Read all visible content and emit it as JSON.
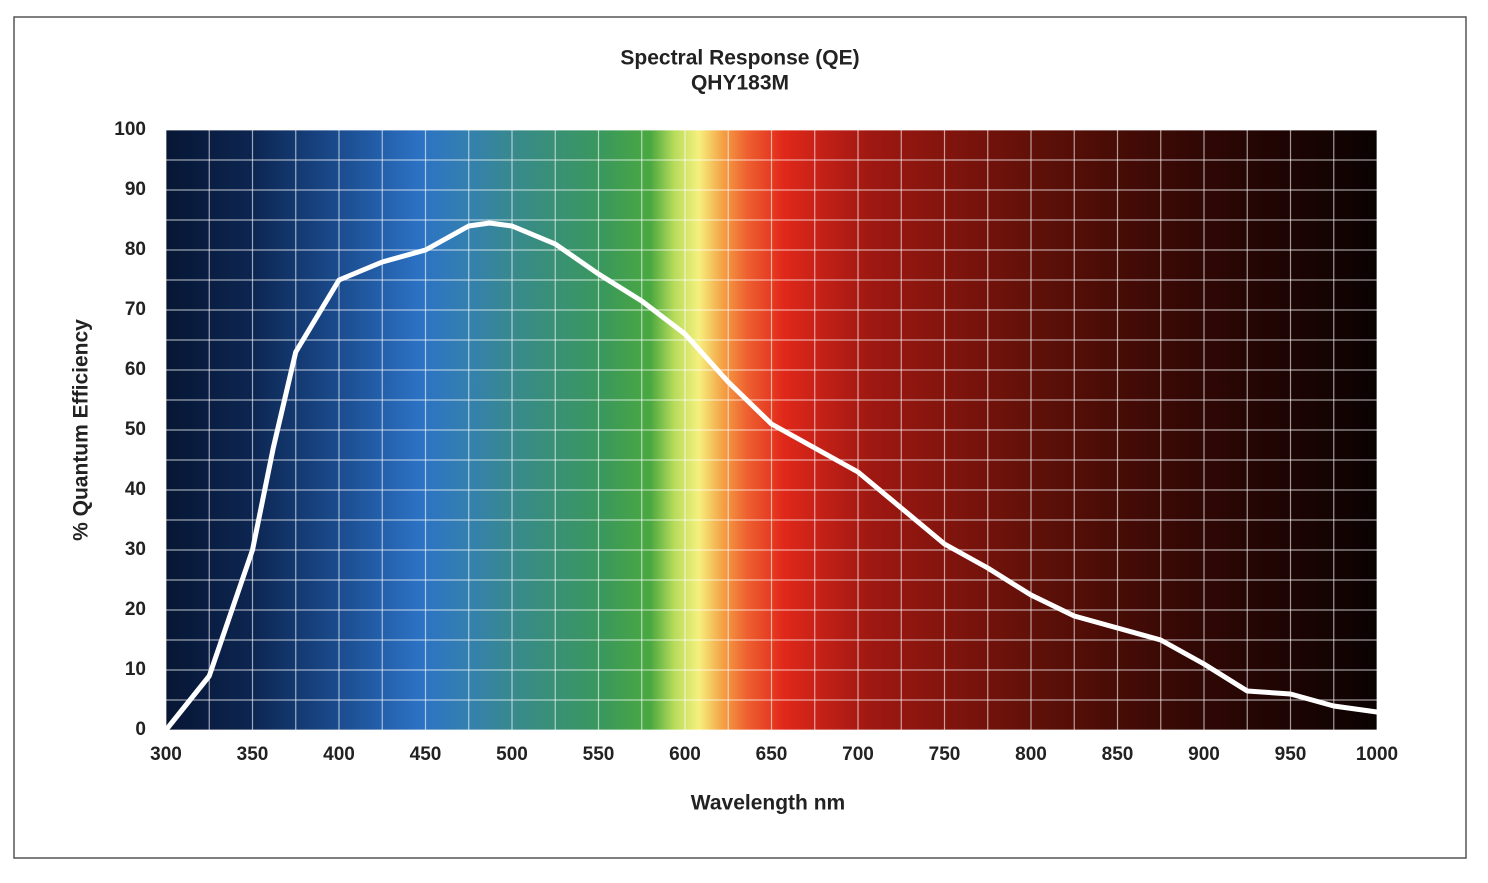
{
  "chart_data": {
    "type": "line",
    "title": "Spectral Response (QE)",
    "subtitle": "QHY183M",
    "x_label": "Wavelength nm",
    "y_label": "% Quantum Efficiency",
    "x": [
      300,
      325,
      350,
      362,
      375,
      400,
      425,
      450,
      475,
      487,
      500,
      525,
      550,
      575,
      600,
      625,
      650,
      675,
      700,
      725,
      750,
      775,
      800,
      825,
      850,
      875,
      900,
      925,
      950,
      975,
      1000
    ],
    "series": [
      {
        "name": "QE",
        "color": "#ffffff",
        "values": [
          0,
          9,
          30,
          47,
          63,
          75,
          78,
          80,
          84,
          84.5,
          84,
          81,
          76,
          71.5,
          66,
          58,
          51,
          47,
          43,
          37,
          31,
          27,
          22.5,
          19,
          17,
          15,
          11,
          6.5,
          6,
          4,
          3
        ]
      }
    ],
    "xlim": [
      300,
      1000
    ],
    "ylim": [
      0,
      100
    ],
    "xticks": [
      300,
      350,
      400,
      450,
      500,
      550,
      600,
      650,
      700,
      750,
      800,
      850,
      900,
      950,
      1000
    ],
    "yticks": [
      0,
      10,
      20,
      30,
      40,
      50,
      60,
      70,
      80,
      90,
      100
    ],
    "grid": true,
    "legend": false
  }
}
